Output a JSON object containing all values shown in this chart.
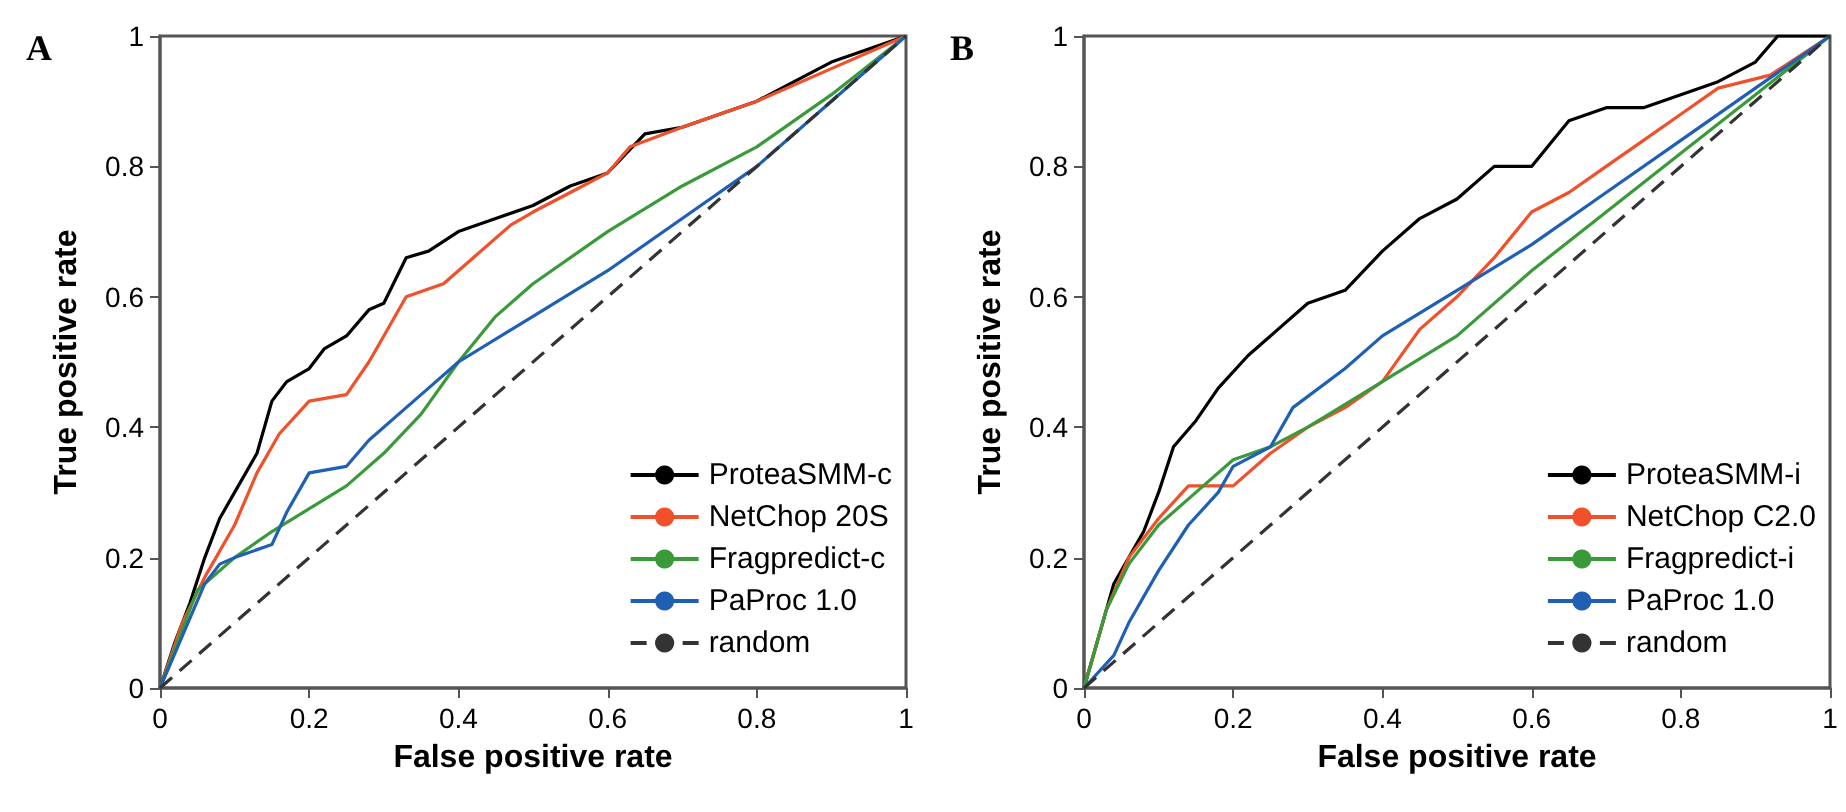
{
  "chart_data": [
    {
      "type": "line",
      "title": "A",
      "xlabel": "False positive rate",
      "ylabel": "True positive rate",
      "xlim": [
        0,
        1
      ],
      "ylim": [
        0,
        1
      ],
      "xticks": [
        0,
        0.2,
        0.4,
        0.6,
        0.8,
        1
      ],
      "yticks": [
        0,
        0.2,
        0.4,
        0.6,
        0.8,
        1
      ],
      "grid": false,
      "legend": "bottom right",
      "marker": "none",
      "series": [
        {
          "name": "ProteaSMM-c",
          "color": "#000000",
          "x": [
            0,
            0.02,
            0.04,
            0.06,
            0.08,
            0.1,
            0.13,
            0.15,
            0.17,
            0.2,
            0.22,
            0.25,
            0.28,
            0.3,
            0.33,
            0.36,
            0.4,
            0.45,
            0.5,
            0.55,
            0.6,
            0.65,
            0.7,
            0.75,
            0.8,
            0.85,
            0.9,
            0.95,
            1
          ],
          "values": [
            0,
            0.07,
            0.13,
            0.2,
            0.26,
            0.3,
            0.36,
            0.44,
            0.47,
            0.49,
            0.52,
            0.54,
            0.58,
            0.59,
            0.66,
            0.67,
            0.7,
            0.72,
            0.74,
            0.77,
            0.79,
            0.85,
            0.86,
            0.88,
            0.9,
            0.93,
            0.96,
            0.98,
            1
          ]
        },
        {
          "name": "NetChop 20S",
          "color": "#f0502a",
          "x": [
            0,
            0.03,
            0.06,
            0.1,
            0.13,
            0.16,
            0.2,
            0.25,
            0.28,
            0.3,
            0.33,
            0.38,
            0.42,
            0.47,
            0.5,
            0.55,
            0.6,
            0.63,
            0.7,
            0.8,
            0.9,
            1
          ],
          "values": [
            0,
            0.1,
            0.17,
            0.25,
            0.33,
            0.39,
            0.44,
            0.45,
            0.5,
            0.54,
            0.6,
            0.62,
            0.66,
            0.71,
            0.73,
            0.76,
            0.79,
            0.83,
            0.86,
            0.9,
            0.95,
            1
          ]
        },
        {
          "name": "Fragpredict-c",
          "color": "#3a9a3a",
          "x": [
            0,
            0.05,
            0.1,
            0.15,
            0.25,
            0.3,
            0.35,
            0.4,
            0.45,
            0.5,
            0.6,
            0.7,
            0.8,
            0.9,
            1
          ],
          "values": [
            0,
            0.15,
            0.2,
            0.24,
            0.31,
            0.36,
            0.42,
            0.5,
            0.57,
            0.62,
            0.7,
            0.77,
            0.83,
            0.91,
            1
          ]
        },
        {
          "name": "PaProc 1.0",
          "color": "#1f5fb4",
          "x": [
            0,
            0.03,
            0.06,
            0.08,
            0.1,
            0.15,
            0.17,
            0.2,
            0.25,
            0.28,
            0.32,
            0.36,
            0.4,
            0.5,
            0.6,
            0.7,
            0.8,
            0.9,
            1
          ],
          "values": [
            0,
            0.08,
            0.16,
            0.19,
            0.2,
            0.22,
            0.27,
            0.33,
            0.34,
            0.38,
            0.42,
            0.46,
            0.5,
            0.57,
            0.64,
            0.72,
            0.8,
            0.9,
            1
          ]
        },
        {
          "name": "random",
          "color": "#333333",
          "line_style": "dashed",
          "x": [
            0,
            1
          ],
          "values": [
            0,
            1
          ]
        }
      ]
    },
    {
      "type": "line",
      "title": "B",
      "xlabel": "False positive rate",
      "ylabel": "True positive rate",
      "xlim": [
        0,
        1
      ],
      "ylim": [
        0,
        1
      ],
      "xticks": [
        0,
        0.2,
        0.4,
        0.6,
        0.8,
        1
      ],
      "yticks": [
        0,
        0.2,
        0.4,
        0.6,
        0.8,
        1
      ],
      "grid": false,
      "legend": "bottom right",
      "marker": "none",
      "series": [
        {
          "name": "ProteaSMM-i",
          "color": "#000000",
          "x": [
            0,
            0.02,
            0.04,
            0.06,
            0.08,
            0.1,
            0.12,
            0.15,
            0.18,
            0.22,
            0.26,
            0.3,
            0.35,
            0.4,
            0.45,
            0.5,
            0.55,
            0.6,
            0.65,
            0.7,
            0.75,
            0.8,
            0.85,
            0.9,
            0.93,
            1
          ],
          "values": [
            0,
            0.08,
            0.16,
            0.2,
            0.24,
            0.3,
            0.37,
            0.41,
            0.46,
            0.51,
            0.55,
            0.59,
            0.61,
            0.67,
            0.72,
            0.75,
            0.8,
            0.8,
            0.87,
            0.89,
            0.89,
            0.91,
            0.93,
            0.96,
            1,
            1
          ]
        },
        {
          "name": "NetChop C2.0",
          "color": "#f0502a",
          "x": [
            0,
            0.03,
            0.06,
            0.1,
            0.14,
            0.2,
            0.25,
            0.3,
            0.35,
            0.4,
            0.45,
            0.5,
            0.55,
            0.6,
            0.65,
            0.7,
            0.75,
            0.8,
            0.85,
            0.92,
            1
          ],
          "values": [
            0,
            0.12,
            0.2,
            0.26,
            0.31,
            0.31,
            0.36,
            0.4,
            0.43,
            0.47,
            0.55,
            0.6,
            0.66,
            0.73,
            0.76,
            0.8,
            0.84,
            0.88,
            0.92,
            0.94,
            1
          ]
        },
        {
          "name": "Fragpredict-i",
          "color": "#3a9a3a",
          "x": [
            0,
            0.03,
            0.06,
            0.1,
            0.15,
            0.2,
            0.25,
            0.3,
            0.4,
            0.5,
            0.6,
            0.7,
            0.8,
            0.9,
            1
          ],
          "values": [
            0,
            0.12,
            0.19,
            0.25,
            0.3,
            0.35,
            0.37,
            0.4,
            0.47,
            0.54,
            0.64,
            0.73,
            0.82,
            0.91,
            1
          ]
        },
        {
          "name": "PaProc 1.0",
          "color": "#1f5fb4",
          "x": [
            0,
            0.04,
            0.06,
            0.1,
            0.14,
            0.18,
            0.2,
            0.25,
            0.28,
            0.35,
            0.4,
            0.5,
            0.6,
            0.7,
            0.8,
            0.9,
            1
          ],
          "values": [
            0,
            0.05,
            0.1,
            0.18,
            0.25,
            0.3,
            0.34,
            0.37,
            0.43,
            0.49,
            0.54,
            0.61,
            0.68,
            0.76,
            0.84,
            0.92,
            1
          ]
        },
        {
          "name": "random",
          "color": "#333333",
          "line_style": "dashed",
          "x": [
            0,
            1
          ],
          "values": [
            0,
            1
          ]
        }
      ]
    }
  ]
}
